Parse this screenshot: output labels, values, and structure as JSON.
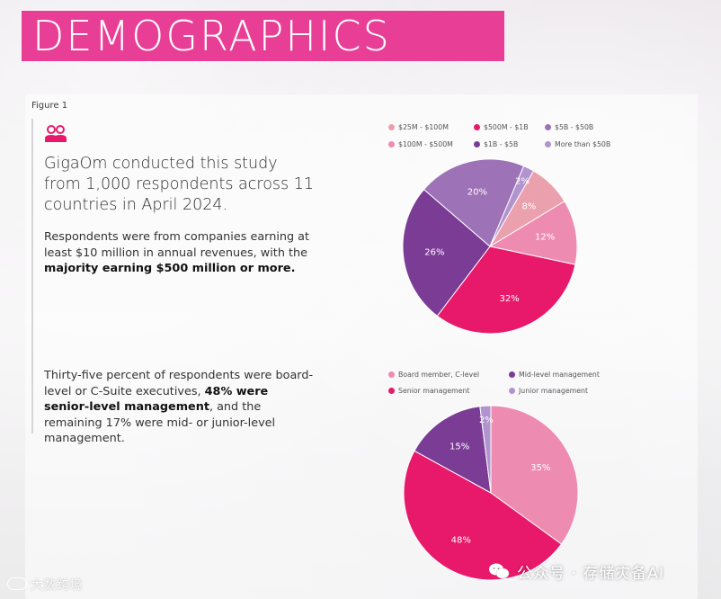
{
  "header": {
    "title": "DEMOGRAPHICS"
  },
  "figure_label": "Figure 1",
  "icon": "people-icon",
  "intro": "GigaOm conducted this study from 1,000 respondents across 11 countries in April 2024.",
  "para1": {
    "before": "Respondents were from companies earning at least $10 million in annual revenues, with the ",
    "bold": "majority earning $500 million or more."
  },
  "para2": {
    "before": "Thirty-five percent of respondents were board-level or C-Suite executives, ",
    "bold": "48% were senior-level management",
    "after": ", and the remaining 17% were mid- or junior-level management."
  },
  "watermarks": {
    "left": "大数跨境",
    "right": "公众号 · 存储灾备AI"
  },
  "colors": {
    "header": "#e83e96",
    "accent": "#e8196a"
  },
  "chart_data": [
    {
      "type": "pie",
      "categories": [
        "$25M - $100M",
        "$100M - $500M",
        "$500M - $1B",
        "$1B - $5B",
        "$5B - $50B",
        "More than $50B"
      ],
      "values": [
        8,
        12,
        32,
        26,
        20,
        2
      ],
      "labels": [
        "8%",
        "12%",
        "32%",
        "26%",
        "20%",
        "2%"
      ],
      "colors": [
        "#eba0ae",
        "#ee8bb0",
        "#e8196a",
        "#7b3c96",
        "#9d72b6",
        "#b193ce"
      ],
      "legend": {
        "placement": "top",
        "order": [
          "$25M - $100M",
          "$500M - $1B",
          "$5B - $50B",
          "$100M - $500M",
          "$1B - $5B",
          "More than $50B"
        ]
      }
    },
    {
      "type": "pie",
      "categories": [
        "Board member, C-level",
        "Senior management",
        "Mid-level management",
        "Junior management"
      ],
      "values": [
        35,
        48,
        15,
        2
      ],
      "labels": [
        "35%",
        "48%",
        "15%",
        "2%"
      ],
      "colors": [
        "#ee8bb0",
        "#e8196a",
        "#7b3c96",
        "#b193ce"
      ],
      "legend": {
        "placement": "top",
        "order": [
          "Board member, C-level",
          "Mid-level management",
          "Senior management",
          "Junior management"
        ]
      }
    }
  ]
}
